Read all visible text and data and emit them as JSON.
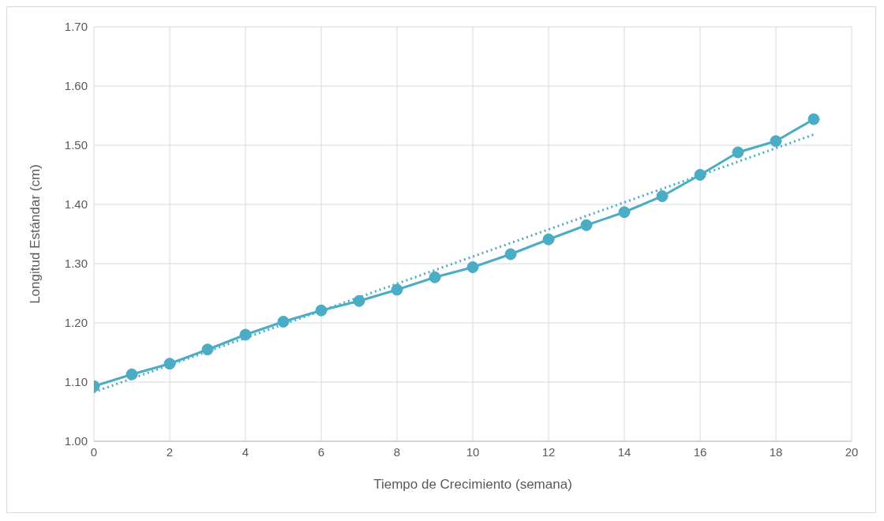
{
  "chart_data": {
    "type": "line",
    "xlabel": "Tiempo de Crecimiento (semana)",
    "ylabel": "Longitud Estándar (cm)",
    "x": [
      0,
      1,
      2,
      3,
      4,
      5,
      6,
      7,
      8,
      9,
      10,
      11,
      12,
      13,
      14,
      15,
      16,
      17,
      18,
      19
    ],
    "series": [
      {
        "color": "#4bacc6",
        "marker": "circle",
        "line_style": "solid",
        "values": [
          1.093,
          1.113,
          1.131,
          1.155,
          1.18,
          1.202,
          1.221,
          1.237,
          1.256,
          1.277,
          1.294,
          1.316,
          1.341,
          1.365,
          1.387,
          1.414,
          1.45,
          1.488,
          1.507,
          1.544
        ]
      },
      {
        "type": "line",
        "color": "#4bacc6",
        "marker": "none",
        "line_style": "dotted",
        "x": [
          0,
          19
        ],
        "values": [
          1.083,
          1.518
        ]
      }
    ],
    "xlim": [
      0,
      20
    ],
    "xticks": [
      0,
      2,
      4,
      6,
      8,
      10,
      12,
      14,
      16,
      18,
      20
    ],
    "ylim": [
      1.0,
      1.7
    ],
    "yticks": [
      {
        "value": 1.0,
        "label": "1.00"
      },
      {
        "value": 1.1,
        "label": "1.10"
      },
      {
        "value": 1.2,
        "label": "1.20"
      },
      {
        "value": 1.3,
        "label": "1.30"
      },
      {
        "value": 1.4,
        "label": "1.40"
      },
      {
        "value": 1.5,
        "label": "1.50"
      },
      {
        "value": 1.6,
        "label": "1.60"
      },
      {
        "value": 1.7,
        "label": "1.70"
      }
    ],
    "grid": true
  }
}
